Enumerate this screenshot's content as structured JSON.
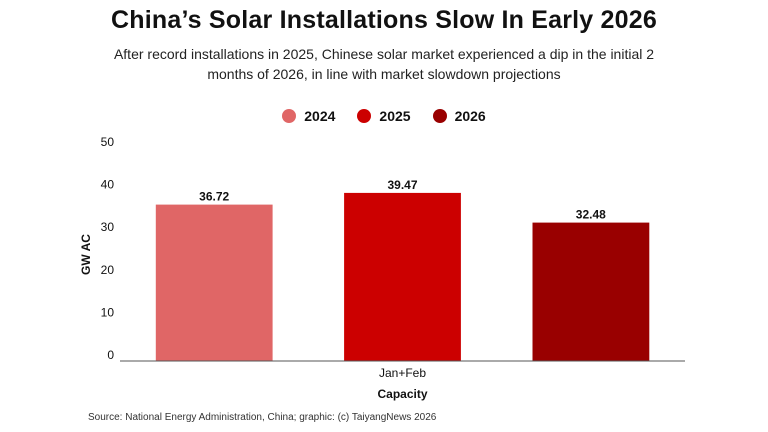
{
  "chart_data": {
    "type": "bar",
    "title": "China’s Solar Installations Slow In Early 2026",
    "subtitle": "After record installations in 2025, Chinese solar market experienced a dip in the initial 2 months of 2026, in line with market slowdown projections",
    "categories": [
      "Jan+Feb"
    ],
    "series": [
      {
        "name": "2024",
        "values": [
          36.72
        ],
        "color": "#e06666"
      },
      {
        "name": "2025",
        "values": [
          39.47
        ],
        "color": "#cc0000"
      },
      {
        "name": "2026",
        "values": [
          32.48
        ],
        "color": "#990000"
      }
    ],
    "xlabel": "Capacity",
    "ylabel": "GW AC",
    "ylim": [
      0,
      50
    ],
    "yticks": [
      0,
      10,
      20,
      30,
      40,
      50
    ],
    "grid": false,
    "legend": "top-center"
  },
  "source": "Source: National Energy Administration, China; graphic: (c) TaiyangNews 2026"
}
